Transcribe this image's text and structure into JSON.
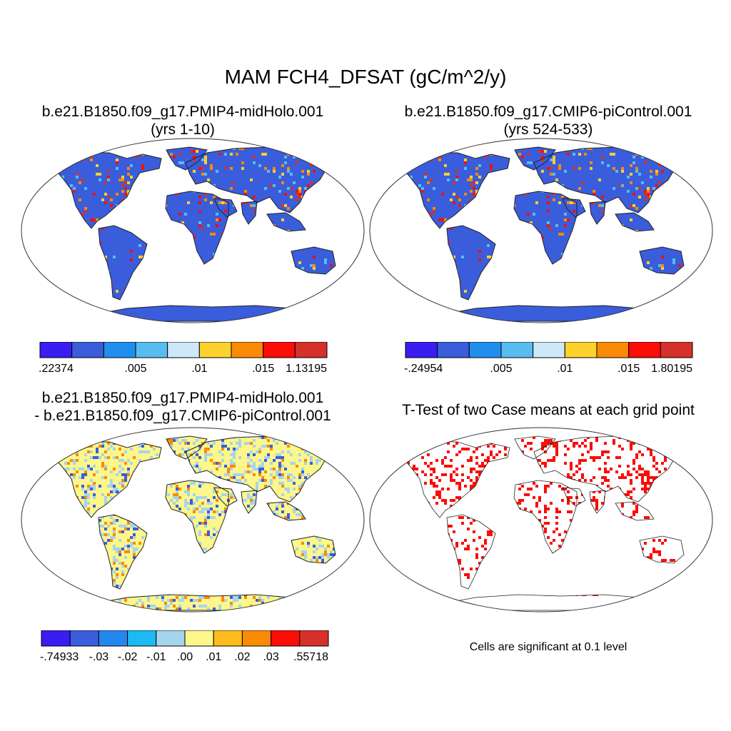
{
  "title": "MAM FCH4_DFSAT (gC/m^2/y)",
  "panels": {
    "top_left": {
      "title_line1": "b.e21.B1850.f09_g17.PMIP4-midHolo.001",
      "title_line2": "(yrs 1-10)",
      "colorbar": {
        "colors": [
          "#3a1df2",
          "#3a5ddc",
          "#1f8fee",
          "#57bdee",
          "#cde8f8",
          "#fdd12c",
          "#fb8a06",
          "#fb0d08",
          "#d5302a"
        ],
        "labels": [
          ".22374",
          ".005",
          ".01",
          ".015",
          "1.13195"
        ]
      }
    },
    "top_right": {
      "title_line1": "b.e21.B1850.f09_g17.CMIP6-piControl.001",
      "title_line2": "(yrs 524-533)",
      "colorbar": {
        "colors": [
          "#3a1df2",
          "#3a5ddc",
          "#1f8fee",
          "#57bdee",
          "#cde8f8",
          "#fdd12c",
          "#fb8a06",
          "#fb0d08",
          "#d5302a"
        ],
        "labels": [
          "-.24954",
          ".005",
          ".01",
          ".015",
          "1.80195"
        ]
      }
    },
    "bottom_left": {
      "title_line1": "b.e21.B1850.f09_g17.PMIP4-midHolo.001",
      "title_line2": "- b.e21.B1850.f09_g17.CMIP6-piControl.001",
      "colorbar": {
        "colors": [
          "#3a1df2",
          "#3a5ddc",
          "#2487ee",
          "#1cbaf2",
          "#a5d5ee",
          "#fdf68a",
          "#fdbc1c",
          "#fb8a06",
          "#fb0d08",
          "#d5302a"
        ],
        "labels": [
          "-.74933",
          "-.03",
          "-.02",
          "-.01",
          ".00",
          ".01",
          ".02",
          ".03",
          ".55718"
        ]
      }
    },
    "bottom_right": {
      "title": "T-Test of two Case means at each grid point",
      "note": "Cells are significant at 0.1 level"
    }
  }
}
